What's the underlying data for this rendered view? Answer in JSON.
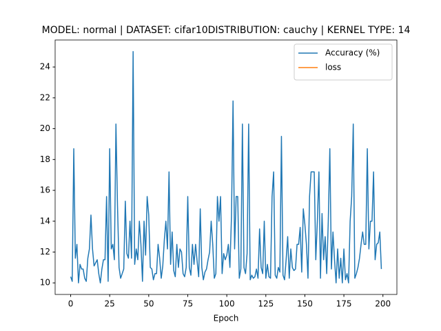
{
  "chart_data": {
    "type": "line",
    "title": "MODEL: normal | DATASET: cifar10DISTRIBUTION: cauchy | KERNEL TYPE: 14",
    "xlabel": "Epoch",
    "x": [
      0,
      1,
      2,
      3,
      4,
      5,
      6,
      7,
      8,
      9,
      10,
      11,
      12,
      13,
      14,
      15,
      16,
      17,
      18,
      19,
      20,
      21,
      22,
      23,
      24,
      25,
      26,
      27,
      28,
      29,
      30,
      31,
      32,
      33,
      34,
      35,
      36,
      37,
      38,
      39,
      40,
      41,
      42,
      43,
      44,
      45,
      46,
      47,
      48,
      49,
      50,
      51,
      52,
      53,
      54,
      55,
      56,
      57,
      58,
      59,
      60,
      61,
      62,
      63,
      64,
      65,
      66,
      67,
      68,
      69,
      70,
      71,
      72,
      73,
      74,
      75,
      76,
      77,
      78,
      79,
      80,
      81,
      82,
      83,
      84,
      85,
      86,
      87,
      88,
      89,
      90,
      91,
      92,
      93,
      94,
      95,
      96,
      97,
      98,
      99,
      100,
      101,
      102,
      103,
      104,
      105,
      106,
      107,
      108,
      109,
      110,
      111,
      112,
      113,
      114,
      115,
      116,
      117,
      118,
      119,
      120,
      121,
      122,
      123,
      124,
      125,
      126,
      127,
      128,
      129,
      130,
      131,
      132,
      133,
      134,
      135,
      136,
      137,
      138,
      139,
      140,
      141,
      142,
      143,
      144,
      145,
      146,
      147,
      148,
      149,
      150,
      151,
      152,
      153,
      154,
      155,
      156,
      157,
      158,
      159,
      160,
      161,
      162,
      163,
      164,
      165,
      166,
      167,
      168,
      169,
      170,
      171,
      172,
      173,
      174,
      175,
      176,
      177,
      178,
      179,
      180,
      181,
      182,
      183,
      184,
      185,
      186,
      187,
      188,
      189,
      190,
      191,
      192,
      193,
      194,
      195,
      196,
      197,
      198,
      199
    ],
    "series": [
      {
        "name": "Accuracy (%)",
        "color": "#1f77b4",
        "values": [
          10.4,
          10.1,
          18.7,
          11.6,
          12.5,
          10.0,
          11.2,
          10.9,
          10.9,
          10.3,
          10.1,
          11.6,
          12.2,
          14.4,
          12.2,
          11.1,
          11.3,
          11.5,
          10.6,
          10.0,
          10.9,
          11.5,
          11.5,
          15.6,
          10.1,
          18.7,
          12.2,
          12.5,
          11.5,
          20.3,
          15.0,
          11.0,
          10.3,
          10.6,
          10.9,
          15.3,
          11.9,
          11.6,
          14.0,
          11.6,
          25.0,
          11.2,
          12.2,
          11.5,
          14.0,
          12.5,
          10.1,
          14.0,
          11.8,
          15.6,
          14.4,
          11.0,
          10.9,
          10.2,
          10.6,
          10.6,
          12.5,
          11.6,
          10.3,
          11.1,
          12.8,
          14.0,
          12.2,
          17.2,
          11.2,
          13.3,
          10.8,
          10.4,
          12.5,
          11.0,
          12.2,
          12.0,
          10.6,
          10.4,
          11.0,
          15.6,
          11.0,
          10.5,
          12.5,
          11.2,
          12.5,
          11.4,
          10.4,
          14.8,
          11.0,
          10.2,
          10.7,
          10.9,
          11.5,
          12.0,
          14.0,
          12.5,
          10.3,
          10.6,
          15.6,
          14.0,
          15.6,
          10.6,
          11.9,
          11.5,
          11.8,
          12.5,
          11.0,
          14.3,
          21.8,
          12.2,
          15.6,
          15.6,
          10.3,
          10.9,
          20.3,
          11.0,
          10.6,
          11.9,
          20.3,
          10.2,
          10.5,
          10.3,
          10.4,
          10.9,
          10.3,
          13.5,
          11.0,
          10.6,
          14.0,
          10.3,
          11.2,
          10.4,
          10.3,
          15.6,
          17.2,
          10.5,
          10.3,
          11.0,
          10.7,
          19.5,
          10.5,
          10.2,
          11.5,
          13.0,
          10.3,
          12.2,
          11.0,
          10.8,
          10.9,
          12.5,
          12.5,
          13.6,
          10.7,
          14.8,
          13.8,
          12.5,
          10.3,
          15.6,
          17.2,
          17.2,
          17.2,
          11.5,
          14.0,
          17.2,
          10.3,
          14.5,
          11.5,
          13.0,
          10.6,
          14.0,
          18.7,
          10.9,
          13.3,
          11.5,
          10.0,
          12.2,
          10.3,
          11.6,
          10.0,
          12.2,
          10.2,
          10.6,
          10.0,
          14.0,
          15.6,
          20.3,
          10.3,
          10.6,
          11.0,
          11.6,
          12.5,
          13.3,
          12.5,
          12.5,
          18.7,
          12.2,
          14.0,
          14.0,
          17.2,
          11.5,
          12.5,
          12.6,
          13.3,
          10.9
        ]
      },
      {
        "name": "loss",
        "color": "#ff7f0e",
        "values": [
          null,
          null,
          null,
          null,
          null,
          null,
          null,
          null,
          null,
          null,
          null,
          null,
          null,
          null,
          null,
          null,
          null,
          null,
          null,
          null,
          null,
          null,
          null,
          null,
          null,
          null,
          null,
          null,
          null,
          null,
          null,
          null,
          null,
          null,
          null,
          null,
          null,
          null,
          null,
          null,
          null,
          null,
          null,
          null,
          null,
          null,
          null,
          null,
          null,
          null,
          null,
          null,
          null,
          null,
          null,
          null,
          null,
          null,
          null,
          null,
          null,
          null,
          null,
          null,
          null,
          null,
          null,
          null,
          null,
          null,
          null,
          null,
          null,
          null,
          null,
          null,
          null,
          null,
          null,
          null,
          null,
          null,
          null,
          null,
          null,
          null,
          null,
          null,
          null,
          null,
          null,
          null,
          null,
          null,
          null,
          null,
          null,
          null,
          null,
          null,
          null,
          null,
          null,
          null,
          null,
          null,
          null,
          null,
          null,
          null,
          null,
          null,
          null,
          null,
          null,
          null,
          null,
          null,
          null,
          null,
          null,
          null,
          null,
          null,
          null,
          null,
          null,
          null,
          null,
          null,
          null,
          null,
          null,
          null,
          null,
          null,
          null,
          null,
          null,
          null,
          null,
          null,
          null,
          null,
          null,
          null,
          null,
          null,
          null,
          null,
          null,
          null,
          null,
          null,
          null,
          null,
          null,
          null,
          null,
          null,
          null,
          null,
          null,
          null,
          null,
          null,
          null,
          null,
          null,
          null,
          null,
          null,
          null,
          null,
          null,
          null,
          null,
          null,
          null,
          null,
          null,
          null,
          null,
          null,
          null,
          null,
          null,
          null,
          null,
          null,
          null,
          null,
          null,
          null,
          null,
          null,
          null,
          null,
          null,
          null
        ]
      }
    ],
    "xlim": [
      -9.95,
      208.95
    ],
    "xticks": [
      0,
      25,
      50,
      75,
      100,
      125,
      150,
      175,
      200
    ],
    "ylim": [
      9.25,
      25.75
    ],
    "yticks": [
      10,
      12,
      14,
      16,
      18,
      20,
      22,
      24
    ],
    "legend": "upper right"
  }
}
